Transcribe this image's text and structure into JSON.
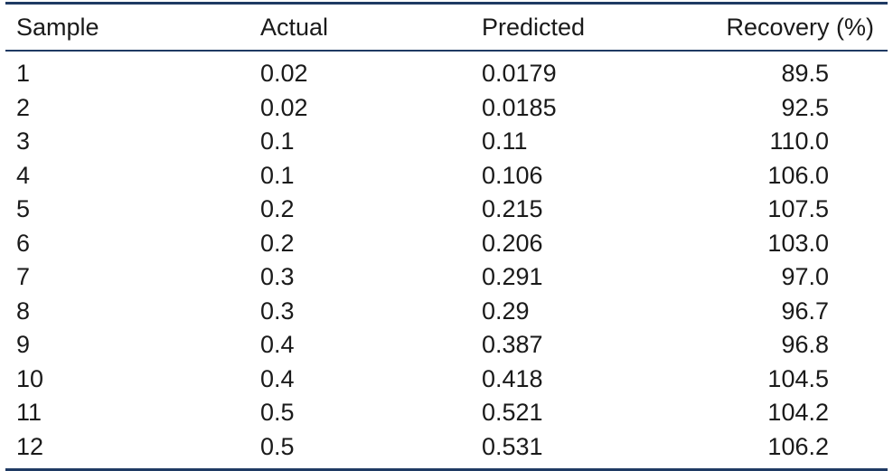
{
  "table": {
    "headers": {
      "sample": "Sample",
      "actual": "Actual",
      "predicted": "Predicted",
      "recovery": "Recovery (%)"
    },
    "rows": [
      {
        "sample": "1",
        "actual": "0.02",
        "predicted": "0.0179",
        "recovery": "89.5"
      },
      {
        "sample": "2",
        "actual": "0.02",
        "predicted": "0.0185",
        "recovery": "92.5"
      },
      {
        "sample": "3",
        "actual": "0.1",
        "predicted": "0.11",
        "recovery": "110.0"
      },
      {
        "sample": "4",
        "actual": "0.1",
        "predicted": "0.106",
        "recovery": "106.0"
      },
      {
        "sample": "5",
        "actual": "0.2",
        "predicted": "0.215",
        "recovery": "107.5"
      },
      {
        "sample": "6",
        "actual": "0.2",
        "predicted": "0.206",
        "recovery": "103.0"
      },
      {
        "sample": "7",
        "actual": "0.3",
        "predicted": "0.291",
        "recovery": "97.0"
      },
      {
        "sample": "8",
        "actual": "0.3",
        "predicted": "0.29",
        "recovery": "96.7"
      },
      {
        "sample": "9",
        "actual": "0.4",
        "predicted": "0.387",
        "recovery": "96.8"
      },
      {
        "sample": "10",
        "actual": "0.4",
        "predicted": "0.418",
        "recovery": "104.5"
      },
      {
        "sample": "11",
        "actual": "0.5",
        "predicted": "0.521",
        "recovery": "104.2"
      },
      {
        "sample": "12",
        "actual": "0.5",
        "predicted": "0.531",
        "recovery": "106.2"
      }
    ]
  },
  "colors": {
    "rule": "#1f3a63",
    "text": "#1a1a1a"
  }
}
